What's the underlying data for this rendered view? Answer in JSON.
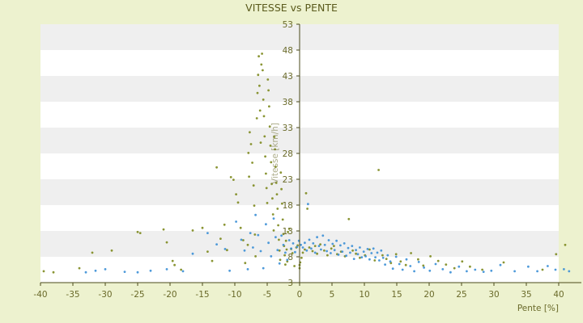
{
  "chart_data": {
    "type": "scatter",
    "title": "VITESSE vs PENTE",
    "xlabel": "Pente [%]",
    "ylabel": "Vitesse [km/h]",
    "xlim": [
      -40,
      40
    ],
    "ylim": [
      3,
      53
    ],
    "x_ticks": [
      "-40",
      "-35",
      "-30",
      "-25",
      "-20",
      "-15",
      "-10",
      "-5",
      "0",
      "5",
      "10",
      "15",
      "20",
      "25",
      "30",
      "35",
      "40"
    ],
    "y_ticks": [
      "3",
      "8",
      "13",
      "18",
      "23",
      "28",
      "33",
      "38",
      "43",
      "48",
      "53"
    ],
    "grid": "horizontal-bands",
    "colors": {
      "background": "#edf2cf",
      "plot_white": "#ffffff",
      "plot_band": "#efefef",
      "axis": "#4a4a1a",
      "olive": "#7d8a1e",
      "blue": "#3b8fd6"
    },
    "series": [
      {
        "color": "olive",
        "points": [
          [
            -39.5,
            5.2
          ],
          [
            -38,
            5.0
          ],
          [
            -34,
            5.8
          ],
          [
            -32,
            8.8
          ],
          [
            -29,
            9.2
          ],
          [
            -25,
            12.8
          ],
          [
            -24.6,
            12.6
          ],
          [
            -21,
            13.3
          ],
          [
            -20.5,
            10.8
          ],
          [
            -19.6,
            7.2
          ],
          [
            -19.3,
            6.4
          ],
          [
            -18.3,
            5.5
          ],
          [
            -16.5,
            13.1
          ],
          [
            -15,
            13.6
          ],
          [
            -14.2,
            9.0
          ],
          [
            -13.5,
            7.2
          ],
          [
            -12.8,
            25.3
          ],
          [
            -12.2,
            11.5
          ],
          [
            -11.6,
            14.2
          ],
          [
            -11.2,
            9.3
          ],
          [
            -10.6,
            23.4
          ],
          [
            -10.2,
            22.9
          ],
          [
            -9.8,
            20.1
          ],
          [
            -9.5,
            18.5
          ],
          [
            -9.1,
            13.6
          ],
          [
            -8.7,
            11.2
          ],
          [
            -8.4,
            6.8
          ],
          [
            -8.0,
            10.3
          ],
          [
            -7.9,
            28.1
          ],
          [
            -7.8,
            23.5
          ],
          [
            -7.7,
            32.1
          ],
          [
            -7.5,
            29.8
          ],
          [
            -7.3,
            26.2
          ],
          [
            -7.1,
            21.8
          ],
          [
            -7.0,
            17.9
          ],
          [
            -6.9,
            12.3
          ],
          [
            -6.8,
            8.1
          ],
          [
            -6.6,
            34.8
          ],
          [
            -6.5,
            39.7
          ],
          [
            -6.4,
            43.2
          ],
          [
            -6.3,
            46.8
          ],
          [
            -6.2,
            41.1
          ],
          [
            -6.1,
            36.3
          ],
          [
            -6.0,
            30.1
          ],
          [
            -5.9,
            45.2
          ],
          [
            -5.8,
            47.3
          ],
          [
            -5.7,
            44.1
          ],
          [
            -5.6,
            38.4
          ],
          [
            -5.5,
            35.2
          ],
          [
            -5.4,
            31.3
          ],
          [
            -5.3,
            27.4
          ],
          [
            -5.2,
            24.1
          ],
          [
            -5.1,
            21.3
          ],
          [
            -5.0,
            18.4
          ],
          [
            -4.9,
            42.3
          ],
          [
            -4.8,
            40.2
          ],
          [
            -4.7,
            37.1
          ],
          [
            -4.6,
            33.2
          ],
          [
            -4.5,
            29.5
          ],
          [
            -4.4,
            26.3
          ],
          [
            -4.3,
            22.1
          ],
          [
            -4.2,
            19.3
          ],
          [
            -4.1,
            16.2
          ],
          [
            -4.0,
            13.1
          ],
          [
            -3.9,
            31.2
          ],
          [
            -3.8,
            28.8
          ],
          [
            -3.7,
            25.4
          ],
          [
            -3.6,
            22.3
          ],
          [
            -3.5,
            20.1
          ],
          [
            -3.4,
            17.3
          ],
          [
            -3.3,
            14.1
          ],
          [
            -3.2,
            11.3
          ],
          [
            -3.1,
            9.2
          ],
          [
            -3.0,
            7.4
          ],
          [
            -2.9,
            24.3
          ],
          [
            -2.8,
            21.1
          ],
          [
            -2.7,
            18.3
          ],
          [
            -2.6,
            15.2
          ],
          [
            -2.5,
            12.4
          ],
          [
            -2.4,
            10.1
          ],
          [
            -2.3,
            8.3
          ],
          [
            -2.2,
            6.5
          ],
          [
            -2.1,
            11.1
          ],
          [
            -2.0,
            9.4
          ],
          [
            -1.9,
            7.1
          ],
          [
            -1.8,
            12.8
          ],
          [
            -1.6,
            13.4
          ],
          [
            -1.3,
            9.5
          ],
          [
            -1.1,
            8.7
          ],
          [
            -0.8,
            6.2
          ],
          [
            -0.5,
            9.8
          ],
          [
            -0.3,
            10.2
          ],
          [
            0.0,
            5.8
          ],
          [
            0.0,
            6.4
          ],
          [
            0.1,
            6.9
          ],
          [
            0.3,
            7.8
          ],
          [
            0.5,
            8.8
          ],
          [
            0.8,
            9.4
          ],
          [
            1.0,
            20.3
          ],
          [
            1.2,
            17.3
          ],
          [
            1.5,
            9.8
          ],
          [
            2.0,
            9.1
          ],
          [
            2.4,
            10.1
          ],
          [
            2.7,
            8.6
          ],
          [
            3.2,
            10.4
          ],
          [
            3.8,
            9.2
          ],
          [
            4.3,
            8.3
          ],
          [
            4.9,
            9.6
          ],
          [
            5.3,
            10.1
          ],
          [
            5.8,
            8.5
          ],
          [
            6.4,
            9.0
          ],
          [
            7.0,
            8.1
          ],
          [
            7.6,
            15.3
          ],
          [
            8.2,
            9.2
          ],
          [
            8.7,
            8.6
          ],
          [
            9.3,
            7.8
          ],
          [
            10.1,
            8.3
          ],
          [
            10.8,
            9.4
          ],
          [
            11.6,
            7.3
          ],
          [
            12.2,
            24.8
          ],
          [
            12.8,
            8.3
          ],
          [
            13.4,
            7.6
          ],
          [
            14.1,
            6.8
          ],
          [
            14.9,
            8.5
          ],
          [
            15.6,
            7.1
          ],
          [
            16.4,
            6.4
          ],
          [
            17.2,
            8.7
          ],
          [
            18.3,
            7.5
          ],
          [
            19.1,
            6.3
          ],
          [
            20.2,
            8.1
          ],
          [
            21.4,
            7.2
          ],
          [
            22.6,
            6.5
          ],
          [
            23.9,
            5.8
          ],
          [
            25.1,
            7.1
          ],
          [
            26.3,
            6.1
          ],
          [
            28.2,
            5.5
          ],
          [
            31.5,
            6.9
          ],
          [
            37.5,
            5.5
          ],
          [
            39.6,
            8.5
          ],
          [
            41.0,
            10.3
          ]
        ]
      },
      {
        "color": "blue",
        "points": [
          [
            -33,
            5.0
          ],
          [
            -31.5,
            5.3
          ],
          [
            -30,
            5.6
          ],
          [
            -27,
            5.1
          ],
          [
            -25,
            5.0
          ],
          [
            -23,
            5.3
          ],
          [
            -20.5,
            5.6
          ],
          [
            -18,
            5.2
          ],
          [
            -16.5,
            8.6
          ],
          [
            -14.2,
            12.6
          ],
          [
            -12.8,
            10.4
          ],
          [
            -11.5,
            9.5
          ],
          [
            -10.8,
            5.3
          ],
          [
            -9.8,
            14.8
          ],
          [
            -9.0,
            11.3
          ],
          [
            -8.5,
            9.2
          ],
          [
            -8.0,
            5.6
          ],
          [
            -7.6,
            12.6
          ],
          [
            -7.2,
            9.8
          ],
          [
            -6.8,
            16.1
          ],
          [
            -6.4,
            12.2
          ],
          [
            -6.0,
            9.1
          ],
          [
            -5.6,
            5.8
          ],
          [
            -5.2,
            14.3
          ],
          [
            -4.8,
            10.7
          ],
          [
            -4.4,
            8.1
          ],
          [
            -4.0,
            15.4
          ],
          [
            -3.7,
            11.8
          ],
          [
            -3.4,
            9.3
          ],
          [
            -3.1,
            6.7
          ],
          [
            -2.8,
            12.1
          ],
          [
            -2.5,
            10.3
          ],
          [
            -2.2,
            8.8
          ],
          [
            -1.9,
            7.4
          ],
          [
            -1.6,
            11.2
          ],
          [
            -1.3,
            9.6
          ],
          [
            -1.0,
            10.6
          ],
          [
            -0.7,
            8.9
          ],
          [
            -0.4,
            9.9
          ],
          [
            -0.1,
            11.1
          ],
          [
            0.2,
            10.3
          ],
          [
            0.5,
            9.8
          ],
          [
            0.8,
            10.7
          ],
          [
            1.1,
            9.2
          ],
          [
            1.3,
            18.2
          ],
          [
            1.5,
            11.3
          ],
          [
            1.8,
            9.6
          ],
          [
            2.1,
            10.6
          ],
          [
            2.4,
            8.8
          ],
          [
            2.7,
            11.8
          ],
          [
            3.0,
            10.1
          ],
          [
            3.3,
            9.4
          ],
          [
            3.6,
            12.1
          ],
          [
            3.9,
            10.3
          ],
          [
            4.2,
            9.1
          ],
          [
            4.5,
            11.2
          ],
          [
            4.8,
            8.7
          ],
          [
            5.1,
            10.5
          ],
          [
            5.4,
            9.3
          ],
          [
            5.7,
            11.1
          ],
          [
            6.0,
            8.4
          ],
          [
            6.3,
            10.2
          ],
          [
            6.6,
            9.0
          ],
          [
            6.9,
            10.6
          ],
          [
            7.2,
            8.2
          ],
          [
            7.5,
            9.7
          ],
          [
            7.8,
            8.8
          ],
          [
            8.1,
            10.1
          ],
          [
            8.4,
            7.6
          ],
          [
            8.7,
            9.3
          ],
          [
            9.0,
            8.5
          ],
          [
            9.3,
            9.8
          ],
          [
            9.6,
            7.9
          ],
          [
            9.9,
            9.0
          ],
          [
            10.2,
            8.1
          ],
          [
            10.5,
            9.5
          ],
          [
            10.8,
            7.5
          ],
          [
            11.1,
            8.7
          ],
          [
            11.4,
            9.6
          ],
          [
            11.7,
            7.9
          ],
          [
            12.0,
            8.8
          ],
          [
            12.3,
            7.3
          ],
          [
            12.6,
            9.2
          ],
          [
            12.9,
            7.8
          ],
          [
            13.2,
            6.5
          ],
          [
            13.6,
            8.3
          ],
          [
            14.0,
            7.1
          ],
          [
            14.4,
            5.7
          ],
          [
            14.9,
            8.0
          ],
          [
            15.4,
            6.6
          ],
          [
            15.9,
            5.5
          ],
          [
            16.5,
            7.5
          ],
          [
            17.1,
            6.2
          ],
          [
            17.7,
            5.2
          ],
          [
            18.4,
            7.0
          ],
          [
            19.2,
            5.9
          ],
          [
            20.1,
            5.3
          ],
          [
            21.0,
            6.6
          ],
          [
            22.1,
            5.6
          ],
          [
            23.3,
            5.0
          ],
          [
            24.6,
            6.1
          ],
          [
            25.8,
            5.2
          ],
          [
            27.1,
            5.5
          ],
          [
            28.4,
            5.1
          ],
          [
            29.6,
            5.3
          ],
          [
            31.0,
            6.4
          ],
          [
            33.2,
            5.2
          ],
          [
            35.3,
            6.1
          ],
          [
            36.7,
            5.2
          ],
          [
            38.3,
            6.2
          ],
          [
            39.5,
            5.5
          ],
          [
            40.8,
            5.6
          ],
          [
            41.6,
            5.2
          ]
        ]
      }
    ]
  }
}
